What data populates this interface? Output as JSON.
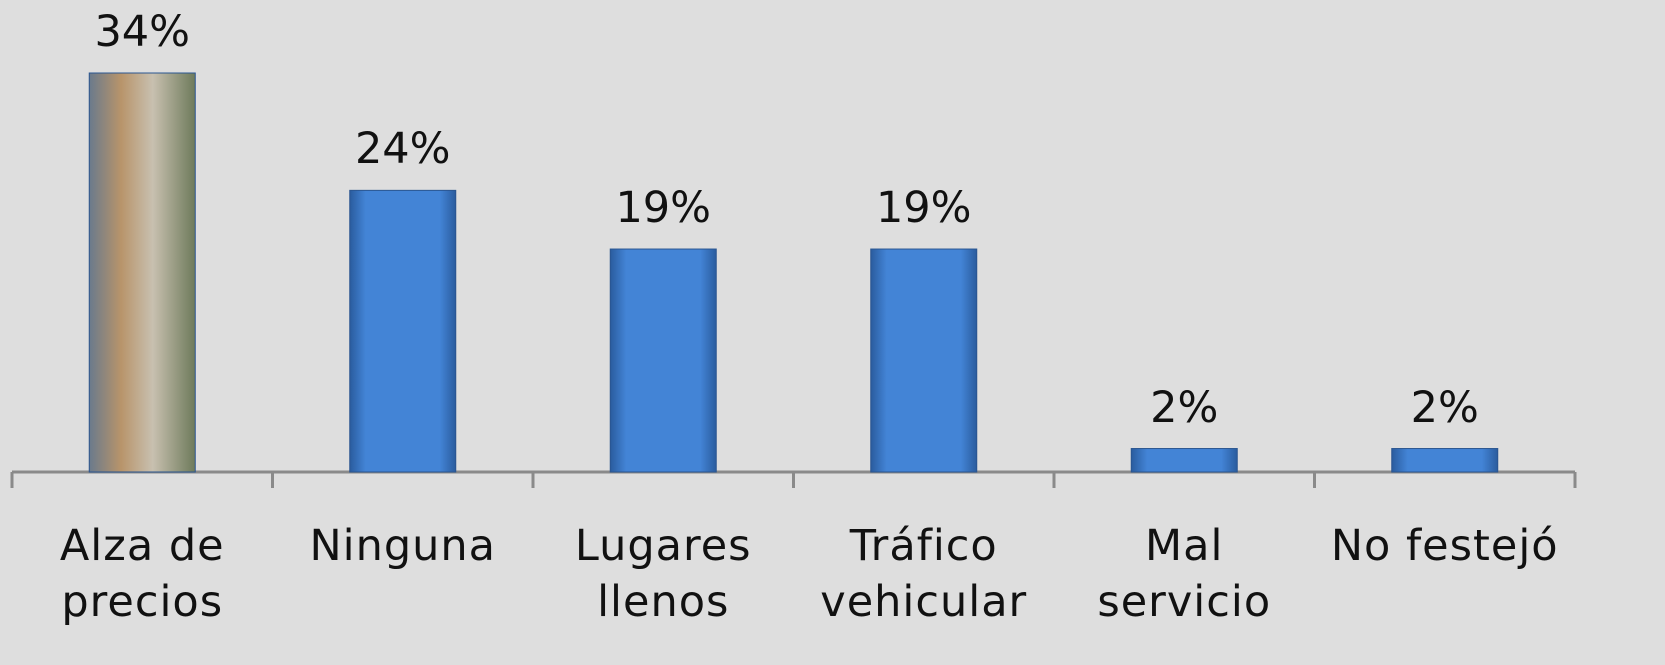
{
  "chart_data": {
    "type": "bar",
    "categories": [
      "Alza de\nprecios",
      "Ninguna",
      "Lugares\nllenos",
      "Tráfico\nvehicular",
      "Mal\nservicio",
      "No festejó"
    ],
    "values": [
      34,
      24,
      19,
      19,
      2,
      2
    ],
    "value_labels": [
      "34%",
      "24%",
      "19%",
      "19%",
      "2%",
      "2%"
    ],
    "color": "#3f7fd0",
    "ylim": [
      0,
      34
    ]
  }
}
